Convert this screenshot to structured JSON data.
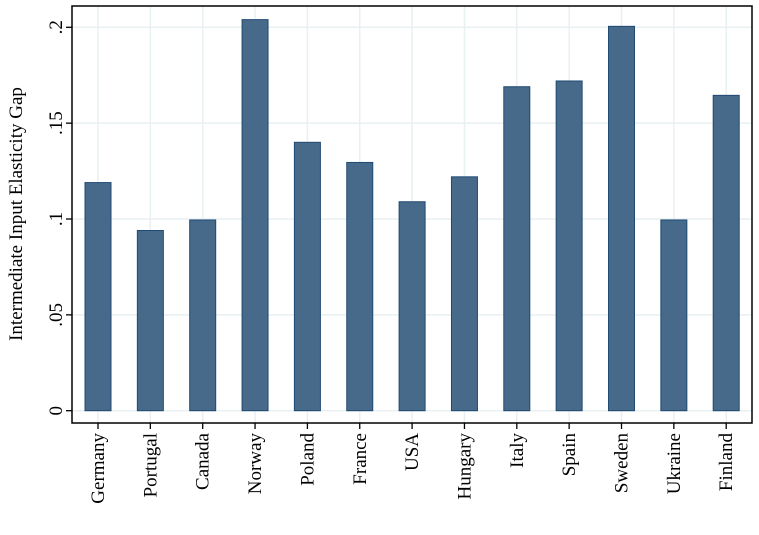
{
  "chart_data": {
    "type": "bar",
    "title": "",
    "xlabel": "",
    "ylabel": "Intermediate Input Elasticity Gap",
    "categories": [
      "Germany",
      "Portugal",
      "Canada",
      "Norway",
      "Poland",
      "France",
      "USA",
      "Hungary",
      "Italy",
      "Spain",
      "Sweden",
      "Ukraine",
      "Finland"
    ],
    "values": [
      0.119,
      0.094,
      0.0995,
      0.204,
      0.14,
      0.1295,
      0.109,
      0.122,
      0.169,
      0.172,
      0.2005,
      0.0995,
      0.1645
    ],
    "ylim": [
      0,
      0.21
    ],
    "yticks": [
      0,
      0.05,
      0.1,
      0.15,
      0.2
    ],
    "ytick_labels": [
      "0",
      ".05",
      ".1",
      ".15",
      ".2"
    ],
    "grid": true,
    "bar_color": "#476a8b",
    "bar_edge_color": "#1f4a72",
    "grid_color": "#e8f0f2"
  }
}
